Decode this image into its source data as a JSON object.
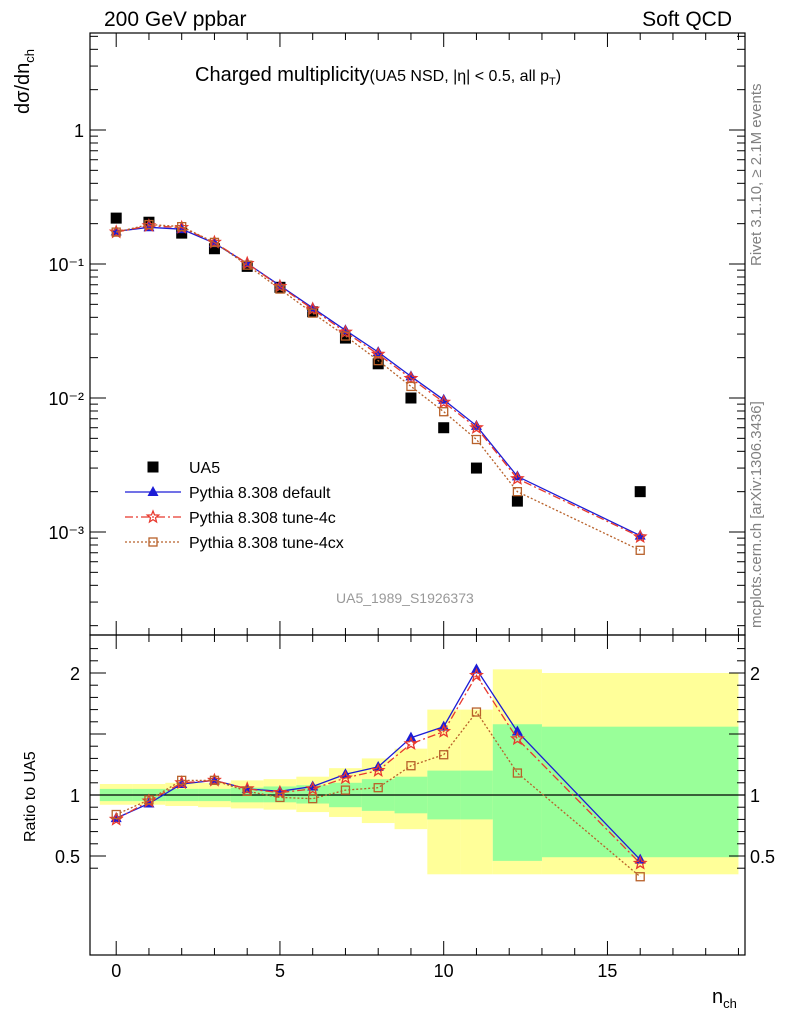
{
  "header": {
    "left": "200 GeV ppbar",
    "right": "Soft QCD"
  },
  "side": {
    "top": "Rivet 3.1.10, ≥ 2.1M events",
    "bottom": "mcplots.cern.ch [arXiv:1306.3436]"
  },
  "chart_data": {
    "type": "scatter",
    "title_main": "Charged multiplicity",
    "title_sub": "(UA5 NSD, |η| < 0.5, all p",
    "title_sub_subscript": "T",
    "title_sub_close": ")",
    "ylabel_main": "dσ/dn",
    "ylabel_sub": "ch",
    "ylabel_ratio": "Ratio to UA5",
    "xlabel_main": "n",
    "xlabel_sub": "ch",
    "watermark": "UA5_1989_S1926373",
    "xlim": [
      -0.8,
      19.2
    ],
    "ylim_main": [
      0.00014,
      5
    ],
    "y_scale_main": "log",
    "ylim_ratio": [
      0.35,
      2.25
    ],
    "x_ticks": [
      0,
      5,
      10,
      15
    ],
    "y_ticks_main": [
      "1",
      "10⁻¹",
      "10⁻²",
      "10⁻³"
    ],
    "y_ticks_ratio": [
      "2",
      "1",
      "0.5"
    ],
    "legend_position": "middle-left",
    "series": [
      {
        "name": "UA5",
        "kind": "data",
        "color": "#000000",
        "x": [
          0,
          1,
          2,
          3,
          4,
          5,
          6,
          7,
          8,
          9,
          10,
          11,
          12.25,
          16
        ],
        "values": [
          0.22,
          0.205,
          0.17,
          0.13,
          0.096,
          0.067,
          0.044,
          0.028,
          0.018,
          0.01,
          0.006,
          0.003,
          0.0017,
          0.002
        ]
      },
      {
        "name": "Pythia 8.308 default",
        "kind": "line-triangle",
        "color": "#1c1cd6",
        "x": [
          0,
          1,
          2,
          3,
          4,
          5,
          6,
          7,
          8,
          9,
          10,
          11,
          12.25,
          16
        ],
        "values": [
          0.175,
          0.188,
          0.182,
          0.143,
          0.101,
          0.069,
          0.047,
          0.032,
          0.022,
          0.0145,
          0.0097,
          0.0062,
          0.0026,
          0.00094
        ],
        "ratio": [
          0.81,
          0.93,
          1.09,
          1.12,
          1.05,
          1.03,
          1.07,
          1.17,
          1.23,
          1.47,
          1.56,
          2.03,
          1.52,
          0.47
        ]
      },
      {
        "name": "Pythia 8.308 tune-4c",
        "kind": "dashdot-star",
        "color": "#e8392e",
        "x": [
          0,
          1,
          2,
          3,
          4,
          5,
          6,
          7,
          8,
          9,
          10,
          11,
          12.25,
          16
        ],
        "values": [
          0.173,
          0.193,
          0.187,
          0.145,
          0.101,
          0.068,
          0.046,
          0.031,
          0.0212,
          0.014,
          0.0093,
          0.006,
          0.0025,
          0.00092
        ],
        "ratio": [
          0.8,
          0.95,
          1.1,
          1.12,
          1.05,
          1.02,
          1.05,
          1.14,
          1.2,
          1.42,
          1.52,
          1.98,
          1.46,
          0.44
        ]
      },
      {
        "name": "Pythia 8.308 tune-4cx",
        "kind": "dotted-square",
        "color": "#b8612a",
        "x": [
          0,
          1,
          2,
          3,
          4,
          5,
          6,
          7,
          8,
          9,
          10,
          11,
          12.25,
          16
        ],
        "values": [
          0.173,
          0.197,
          0.19,
          0.145,
          0.098,
          0.065,
          0.043,
          0.029,
          0.019,
          0.0122,
          0.0079,
          0.0049,
          0.002,
          0.00073
        ],
        "ratio": [
          0.84,
          0.96,
          1.12,
          1.12,
          1.03,
          0.98,
          0.97,
          1.04,
          1.06,
          1.24,
          1.33,
          1.68,
          1.18,
          0.33
        ]
      }
    ],
    "ratio_bands": {
      "bins": [
        [
          -0.5,
          0.5
        ],
        [
          0.5,
          1.5
        ],
        [
          1.5,
          2.5
        ],
        [
          2.5,
          3.5
        ],
        [
          3.5,
          4.5
        ],
        [
          4.5,
          5.5
        ],
        [
          5.5,
          6.5
        ],
        [
          6.5,
          7.5
        ],
        [
          7.5,
          8.5
        ],
        [
          8.5,
          9.5
        ],
        [
          9.5,
          10.5
        ],
        [
          10.5,
          11.5
        ],
        [
          11.5,
          13.0
        ],
        [
          13.0,
          19.0
        ]
      ],
      "inner_color": "#99ff99",
      "outer_color": "#ffff99",
      "inner_lo": [
        0.95,
        0.95,
        0.95,
        0.95,
        0.94,
        0.94,
        0.93,
        0.9,
        0.87,
        0.85,
        0.8,
        0.8,
        0.46,
        0.49
      ],
      "inner_hi": [
        1.05,
        1.05,
        1.05,
        1.05,
        1.06,
        1.07,
        1.08,
        1.1,
        1.13,
        1.15,
        1.2,
        1.2,
        1.58,
        1.56
      ],
      "outer_lo": [
        0.92,
        0.92,
        0.91,
        0.9,
        0.89,
        0.88,
        0.86,
        0.82,
        0.77,
        0.72,
        0.35,
        0.35,
        0.35,
        0.35
      ],
      "outer_hi": [
        1.09,
        1.09,
        1.1,
        1.1,
        1.12,
        1.13,
        1.15,
        1.22,
        1.3,
        1.38,
        1.7,
        1.7,
        2.03,
        2.0
      ]
    }
  }
}
